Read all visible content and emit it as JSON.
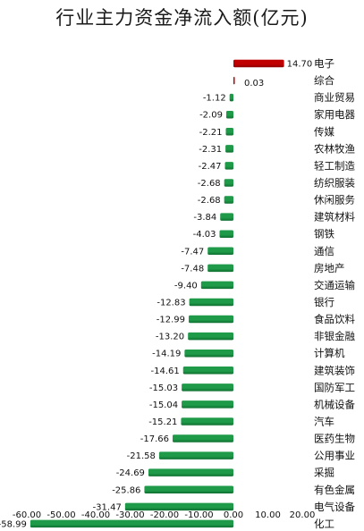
{
  "chart_data": {
    "type": "bar",
    "orientation": "horizontal",
    "title": "行业主力资金净流入额(亿元)",
    "categories": [
      "电子",
      "综合",
      "商业贸易",
      "家用电器",
      "传媒",
      "农林牧渔",
      "轻工制造",
      "纺织服装",
      "休闲服务",
      "建筑材料",
      "钢铁",
      "通信",
      "房地产",
      "交通运输",
      "银行",
      "食品饮料",
      "非银金融",
      "计算机",
      "建筑装饰",
      "国防军工",
      "机械设备",
      "汽车",
      "医药生物",
      "公用事业",
      "采掘",
      "有色金属",
      "电气设备",
      "化工"
    ],
    "values": [
      14.7,
      0.03,
      -1.12,
      -2.09,
      -2.21,
      -2.31,
      -2.47,
      -2.68,
      -2.68,
      -3.84,
      -4.03,
      -7.47,
      -7.48,
      -9.4,
      -12.83,
      -12.99,
      -13.2,
      -14.19,
      -14.61,
      -15.03,
      -15.04,
      -15.21,
      -17.66,
      -21.58,
      -24.69,
      -25.86,
      -31.47,
      -58.99
    ],
    "value_labels": [
      "14.70",
      "0.03",
      "-1.12",
      "-2.09",
      "-2.21",
      "-2.31",
      "-2.47",
      "-2.68",
      "-2.68",
      "-3.84",
      "-4.03",
      "-7.47",
      "-7.48",
      "-9.40",
      "-12.83",
      "-12.99",
      "-13.20",
      "-14.19",
      "-14.61",
      "-15.03",
      "-15.04",
      "-15.21",
      "-17.66",
      "-21.58",
      "-24.69",
      "-25.86",
      "-31.47",
      "-58.99"
    ],
    "xlim": [
      -60,
      20
    ],
    "x_ticks": [
      -60,
      -50,
      -40,
      -30,
      -20,
      -10,
      0,
      10,
      20
    ],
    "x_tick_labels": [
      "-60.00",
      "-50.00",
      "-40.00",
      "-30.00",
      "-20.00",
      "-10.00",
      "0.00",
      "10.00",
      "20.00"
    ],
    "grid": false,
    "colors": {
      "positive": "#c00000",
      "negative": "#1e9a48"
    }
  }
}
